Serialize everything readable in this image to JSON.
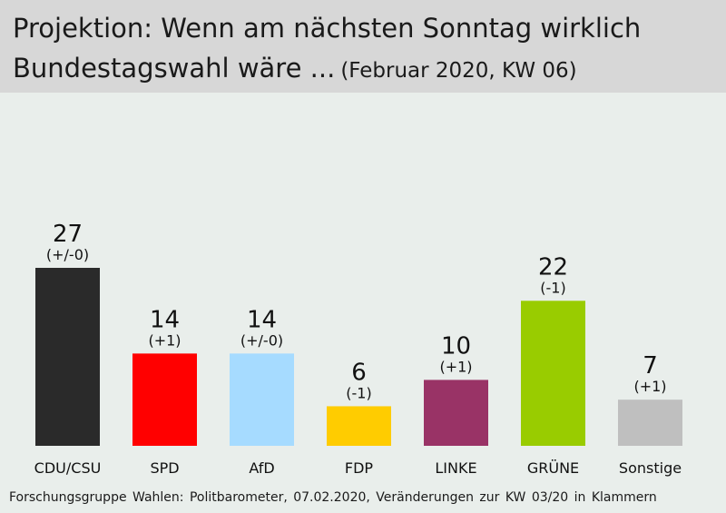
{
  "header": {
    "title_line1": "Projektion: Wenn am nächsten Sonntag wirklich",
    "title_line2": "Bundestagswahl wäre ...",
    "subtitle": "(Februar 2020, KW 06)"
  },
  "footer": {
    "source": "Forschungsgruppe Wahlen: Politbarometer, 07.02.2020, Veränderungen zur KW 03/20 in Klammern"
  },
  "chart_data": {
    "type": "bar",
    "categories": [
      "CDU/CSU",
      "SPD",
      "AfD",
      "FDP",
      "LINKE",
      "GRÜNE",
      "Sonstige"
    ],
    "values": [
      27,
      14,
      14,
      6,
      10,
      22,
      7
    ],
    "changes": [
      "(+/-0)",
      "(+1)",
      "(+/-0)",
      "(-1)",
      "(+1)",
      "(-1)",
      "(+1)"
    ],
    "colors": [
      "#2a2a2a",
      "#ff0000",
      "#a6dbff",
      "#ffcc00",
      "#993366",
      "#99cc00",
      "#bfbfbf"
    ],
    "title": "Projektion: Wenn am nächsten Sonntag wirklich Bundestagswahl wäre ...",
    "subtitle": "(Februar 2020, KW 06)",
    "xlabel": "",
    "ylabel": "",
    "ylim": [
      0,
      27
    ],
    "grid": false,
    "legend": "none"
  }
}
